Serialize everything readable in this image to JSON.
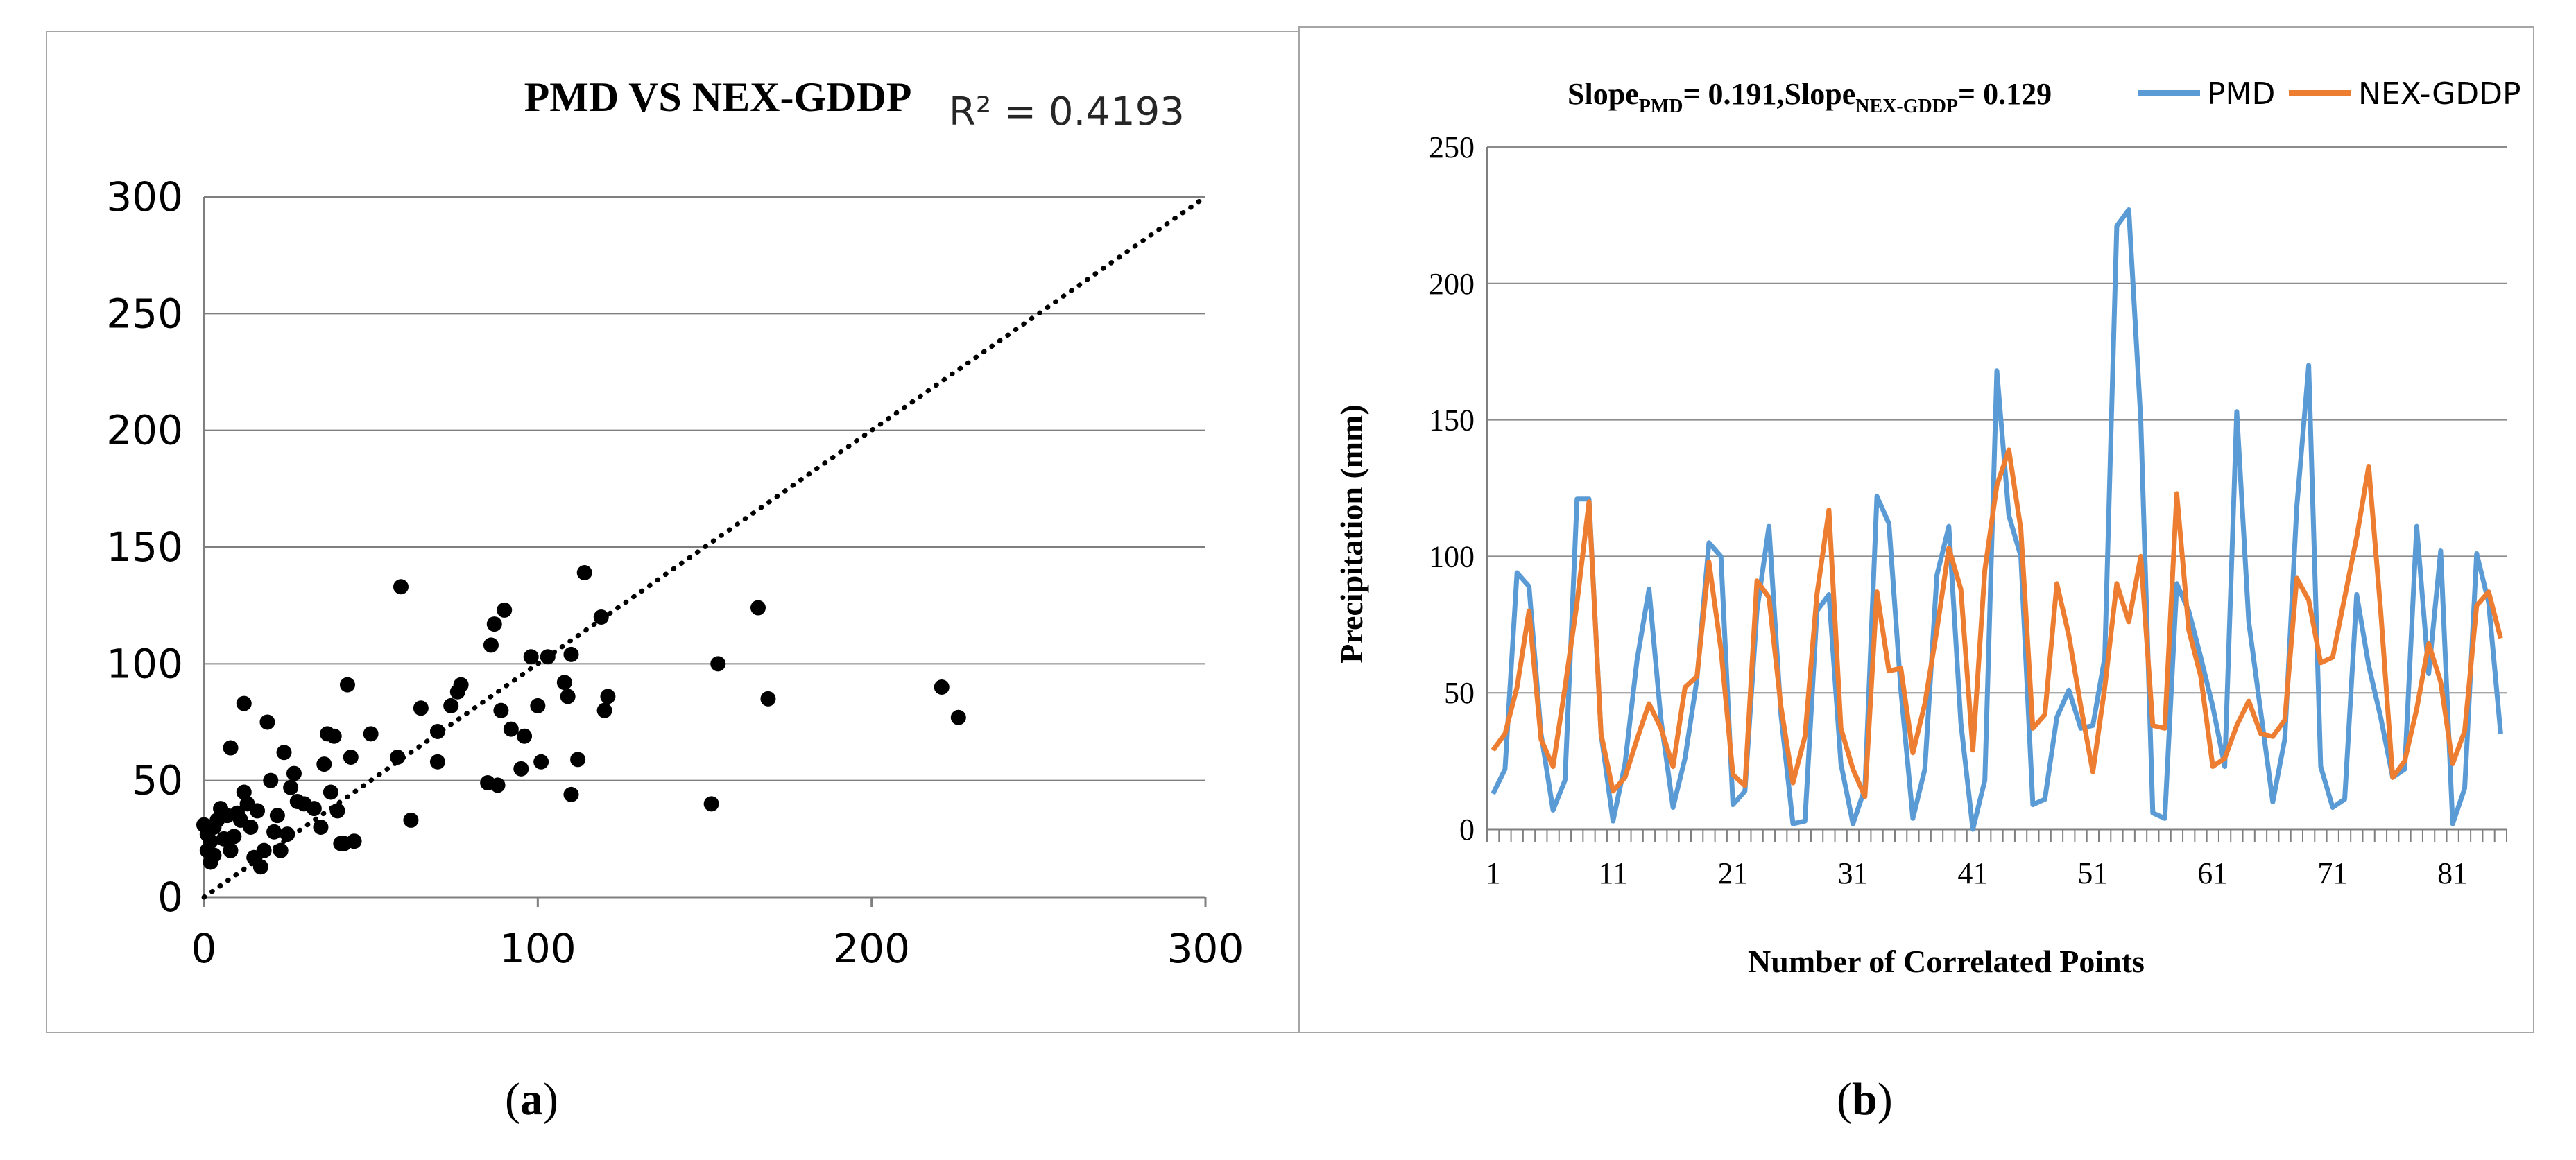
{
  "captions": {
    "a_letter": "a",
    "b_letter": "b"
  },
  "chart_data": [
    {
      "panel": "a",
      "type": "scatter",
      "title": "PMD VS NEX-GDDP",
      "annotation": "R² = 0.4193",
      "xlabel": "",
      "ylabel": "",
      "xlim": [
        0,
        300
      ],
      "ylim": [
        0,
        300
      ],
      "x_ticks": [
        0,
        100,
        200,
        300
      ],
      "y_ticks": [
        0,
        50,
        100,
        150,
        200,
        250,
        300
      ],
      "grid": "horizontal",
      "trendline": {
        "style": "dotted",
        "from": [
          0,
          0
        ],
        "to": [
          300,
          300
        ]
      },
      "point_color": "#000000",
      "points": [
        [
          0,
          31
        ],
        [
          1,
          20
        ],
        [
          1,
          27
        ],
        [
          2,
          15
        ],
        [
          2,
          24
        ],
        [
          3,
          18
        ],
        [
          3,
          30
        ],
        [
          4,
          33
        ],
        [
          5,
          38
        ],
        [
          6,
          25
        ],
        [
          7,
          35
        ],
        [
          8,
          64
        ],
        [
          8,
          20
        ],
        [
          9,
          26
        ],
        [
          10,
          36
        ],
        [
          11,
          33
        ],
        [
          12,
          83
        ],
        [
          12,
          45
        ],
        [
          13,
          40
        ],
        [
          14,
          30
        ],
        [
          15,
          17
        ],
        [
          16,
          37
        ],
        [
          17,
          13
        ],
        [
          18,
          20
        ],
        [
          19,
          75
        ],
        [
          20,
          50
        ],
        [
          21,
          28
        ],
        [
          22,
          35
        ],
        [
          23,
          20
        ],
        [
          24,
          62
        ],
        [
          25,
          27
        ],
        [
          26,
          47
        ],
        [
          27,
          53
        ],
        [
          28,
          41
        ],
        [
          30,
          40
        ],
        [
          33,
          38
        ],
        [
          35,
          30
        ],
        [
          36,
          57
        ],
        [
          37,
          70
        ],
        [
          38,
          45
        ],
        [
          39,
          69
        ],
        [
          40,
          37
        ],
        [
          41,
          23
        ],
        [
          42,
          23
        ],
        [
          43,
          91
        ],
        [
          44,
          60
        ],
        [
          45,
          24
        ],
        [
          50,
          70
        ],
        [
          58,
          60
        ],
        [
          59,
          133
        ],
        [
          62,
          33
        ],
        [
          65,
          81
        ],
        [
          70,
          71
        ],
        [
          70,
          58
        ],
        [
          74,
          82
        ],
        [
          76,
          88
        ],
        [
          77,
          91
        ],
        [
          85,
          49
        ],
        [
          86,
          108
        ],
        [
          87,
          117
        ],
        [
          88,
          48
        ],
        [
          89,
          80
        ],
        [
          90,
          123
        ],
        [
          92,
          72
        ],
        [
          95,
          55
        ],
        [
          96,
          69
        ],
        [
          98,
          103
        ],
        [
          100,
          82
        ],
        [
          101,
          58
        ],
        [
          103,
          103
        ],
        [
          108,
          92
        ],
        [
          109,
          86
        ],
        [
          110,
          104
        ],
        [
          110,
          44
        ],
        [
          112,
          59
        ],
        [
          114,
          139
        ],
        [
          119,
          120
        ],
        [
          120,
          80
        ],
        [
          121,
          86
        ],
        [
          152,
          40
        ],
        [
          154,
          100
        ],
        [
          166,
          124
        ],
        [
          169,
          85
        ],
        [
          221,
          90
        ],
        [
          226,
          77
        ]
      ]
    },
    {
      "panel": "b",
      "type": "line",
      "title": "Slope",
      "title_parts": {
        "prefix": "Slope",
        "sub1": "PMD",
        "mid": "= 0.191,Slope",
        "sub2": "NEX-GDDP",
        "suffix": "= 0.129"
      },
      "xlabel": "Number of Correlated Points",
      "ylabel": "Precipitation (mm)",
      "ylim": [
        0,
        250
      ],
      "y_ticks": [
        0,
        50,
        100,
        150,
        200,
        250
      ],
      "x_range": [
        1,
        85
      ],
      "x_tick_labels": [
        1,
        11,
        21,
        31,
        41,
        51,
        61,
        71,
        81
      ],
      "legend_position": "top-right",
      "grid": "horizontal",
      "series": [
        {
          "name": "PMD",
          "color": "#5b9bd5",
          "values": [
            13,
            22,
            94,
            89,
            35,
            7,
            18,
            121,
            121,
            35,
            3,
            24,
            62,
            88,
            40,
            8,
            26,
            55,
            105,
            100,
            9,
            14,
            80,
            111,
            42,
            2,
            3,
            80,
            86,
            24,
            2,
            15,
            122,
            112,
            51,
            4,
            22,
            93,
            111,
            39,
            0,
            18,
            168,
            115,
            100,
            9,
            11,
            41,
            51,
            37,
            38,
            63,
            221,
            227,
            150,
            6,
            4,
            90,
            80,
            63,
            45,
            23,
            153,
            76,
            43,
            10,
            33,
            118,
            170,
            23,
            8,
            11,
            86,
            60,
            41,
            19,
            22,
            111,
            57,
            102,
            2,
            15,
            101,
            83,
            35
          ]
        },
        {
          "name": "NEX-GDDP",
          "color": "#ed7d31",
          "values": [
            29,
            35,
            52,
            80,
            33,
            23,
            52,
            83,
            120,
            35,
            14,
            19,
            33,
            46,
            37,
            23,
            52,
            56,
            98,
            66,
            20,
            16,
            91,
            85,
            45,
            17,
            34,
            86,
            117,
            37,
            22,
            12,
            87,
            58,
            59,
            28,
            46,
            73,
            103,
            88,
            29,
            95,
            126,
            139,
            110,
            37,
            42,
            90,
            71,
            45,
            21,
            52,
            90,
            76,
            100,
            38,
            37,
            123,
            73,
            56,
            23,
            26,
            38,
            47,
            35,
            34,
            40,
            92,
            84,
            61,
            63,
            85,
            107,
            133,
            80,
            19,
            25,
            44,
            68,
            54,
            24,
            36,
            82,
            87,
            70
          ]
        }
      ]
    }
  ]
}
